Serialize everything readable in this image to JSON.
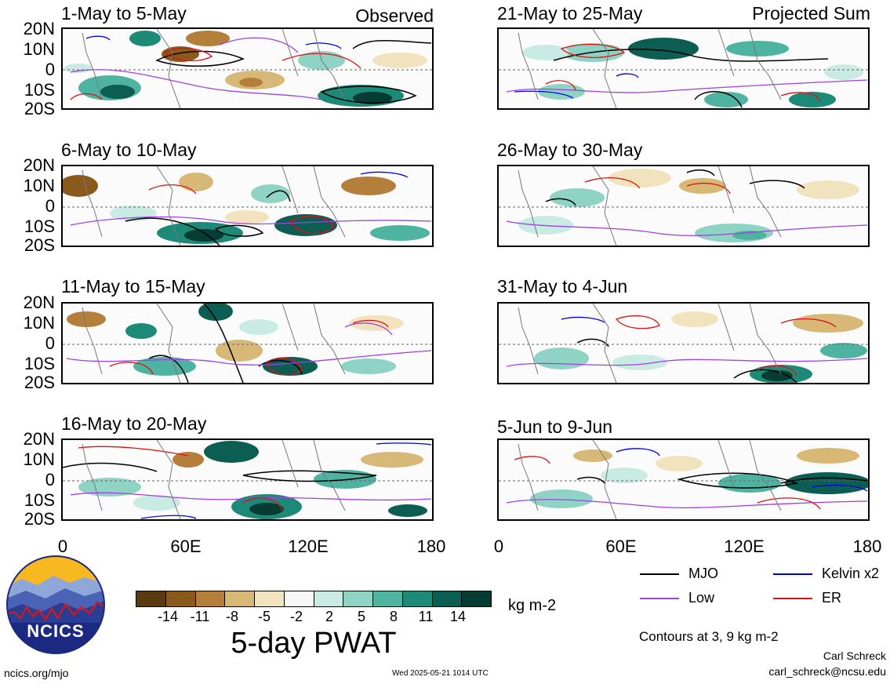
{
  "panels_left": [
    {
      "title": "1-May to 5-May",
      "mode": "Observed"
    },
    {
      "title": "6-May to 10-May",
      "mode": ""
    },
    {
      "title": "11-May to 15-May",
      "mode": ""
    },
    {
      "title": "16-May to 20-May",
      "mode": ""
    }
  ],
  "panels_right": [
    {
      "title": "21-May to 25-May",
      "mode": "Projected Sum"
    },
    {
      "title": "26-May to 30-May",
      "mode": ""
    },
    {
      "title": "31-May to 4-Jun",
      "mode": ""
    },
    {
      "title": "5-Jun to 9-Jun",
      "mode": ""
    }
  ],
  "lat_labels": [
    "20N",
    "10N",
    "0",
    "10S",
    "20S"
  ],
  "lon_labels": [
    "0",
    "60E",
    "120E",
    "180"
  ],
  "colorbar": {
    "ticks": [
      "-14",
      "-11",
      "-8",
      "-5",
      "-2",
      "2",
      "5",
      "8",
      "11",
      "14"
    ],
    "units": "kg m-2",
    "colors": [
      "#5a3a10",
      "#8a5a1c",
      "#b47f3a",
      "#d8b877",
      "#f1e3bd",
      "#f7f7f7",
      "#c9ebe3",
      "#8fd3c5",
      "#4fb3a1",
      "#1c8a77",
      "#0c5e52",
      "#073c34"
    ]
  },
  "main_title": "5-day PWAT",
  "legend": [
    {
      "label": "MJO",
      "color": "#000000"
    },
    {
      "label": "Kelvin x2",
      "color": "#0000dd"
    },
    {
      "label": "Low",
      "color": "#a040e0"
    },
    {
      "label": "ER",
      "color": "#e01010"
    }
  ],
  "contours_note": "Contours at 3, 9 kg m-2",
  "author_name": "Carl Schreck",
  "author_email": "carl_schreck@ncsu.edu",
  "site": "ncics.org/mjo",
  "timestamp": "Wed 2025-05-21 1014 UTC",
  "logo_text": "NCICS"
}
